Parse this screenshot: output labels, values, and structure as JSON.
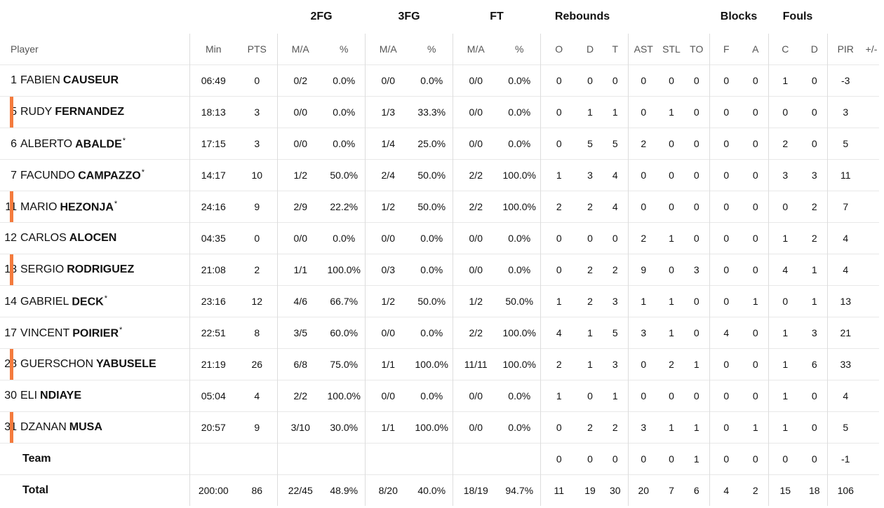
{
  "groups": {
    "fg2": "2FG",
    "fg3": "3FG",
    "ft": "FT",
    "rebounds": "Rebounds",
    "blocks": "Blocks",
    "fouls": "Fouls"
  },
  "columns": [
    "Player",
    "Min",
    "PTS",
    "M/A",
    "%",
    "M/A",
    "%",
    "M/A",
    "%",
    "O",
    "D",
    "T",
    "AST",
    "STL",
    "TO",
    "F",
    "A",
    "C",
    "D",
    "PIR",
    "+/-"
  ],
  "players": [
    {
      "num": "1",
      "first": "FABIEN",
      "last": "CAUSEUR",
      "mark": "",
      "starter": false,
      "stats": [
        "06:49",
        "0",
        "0/2",
        "0.0%",
        "0/0",
        "0.0%",
        "0/0",
        "0.0%",
        "0",
        "0",
        "0",
        "0",
        "0",
        "0",
        "0",
        "0",
        "1",
        "0",
        "-3",
        ""
      ]
    },
    {
      "num": "5",
      "first": "RUDY",
      "last": "FERNANDEZ",
      "mark": "",
      "starter": true,
      "stats": [
        "18:13",
        "3",
        "0/0",
        "0.0%",
        "1/3",
        "33.3%",
        "0/0",
        "0.0%",
        "0",
        "1",
        "1",
        "0",
        "1",
        "0",
        "0",
        "0",
        "0",
        "0",
        "3",
        ""
      ]
    },
    {
      "num": "6",
      "first": "ALBERTO",
      "last": "ABALDE",
      "mark": "*",
      "starter": false,
      "stats": [
        "17:15",
        "3",
        "0/0",
        "0.0%",
        "1/4",
        "25.0%",
        "0/0",
        "0.0%",
        "0",
        "5",
        "5",
        "2",
        "0",
        "0",
        "0",
        "0",
        "2",
        "0",
        "5",
        ""
      ]
    },
    {
      "num": "7",
      "first": "FACUNDO",
      "last": "CAMPAZZO",
      "mark": "*",
      "starter": false,
      "stats": [
        "14:17",
        "10",
        "1/2",
        "50.0%",
        "2/4",
        "50.0%",
        "2/2",
        "100.0%",
        "1",
        "3",
        "4",
        "0",
        "0",
        "0",
        "0",
        "0",
        "3",
        "3",
        "11",
        ""
      ]
    },
    {
      "num": "11",
      "first": "MARIO",
      "last": "HEZONJA",
      "mark": "*",
      "starter": true,
      "stats": [
        "24:16",
        "9",
        "2/9",
        "22.2%",
        "1/2",
        "50.0%",
        "2/2",
        "100.0%",
        "2",
        "2",
        "4",
        "0",
        "0",
        "0",
        "0",
        "0",
        "0",
        "2",
        "7",
        ""
      ]
    },
    {
      "num": "12",
      "first": "CARLOS",
      "last": "ALOCEN",
      "mark": "",
      "starter": false,
      "stats": [
        "04:35",
        "0",
        "0/0",
        "0.0%",
        "0/0",
        "0.0%",
        "0/0",
        "0.0%",
        "0",
        "0",
        "0",
        "2",
        "1",
        "0",
        "0",
        "0",
        "1",
        "2",
        "4",
        ""
      ]
    },
    {
      "num": "13",
      "first": "SERGIO",
      "last": "RODRIGUEZ",
      "mark": "",
      "starter": true,
      "stats": [
        "21:08",
        "2",
        "1/1",
        "100.0%",
        "0/3",
        "0.0%",
        "0/0",
        "0.0%",
        "0",
        "2",
        "2",
        "9",
        "0",
        "3",
        "0",
        "0",
        "4",
        "1",
        "4",
        ""
      ]
    },
    {
      "num": "14",
      "first": "GABRIEL",
      "last": "DECK",
      "mark": "*",
      "starter": false,
      "stats": [
        "23:16",
        "12",
        "4/6",
        "66.7%",
        "1/2",
        "50.0%",
        "1/2",
        "50.0%",
        "1",
        "2",
        "3",
        "1",
        "1",
        "0",
        "0",
        "1",
        "0",
        "1",
        "13",
        ""
      ]
    },
    {
      "num": "17",
      "first": "VINCENT",
      "last": "POIRIER",
      "mark": "*",
      "starter": false,
      "stats": [
        "22:51",
        "8",
        "3/5",
        "60.0%",
        "0/0",
        "0.0%",
        "2/2",
        "100.0%",
        "4",
        "1",
        "5",
        "3",
        "1",
        "0",
        "4",
        "0",
        "1",
        "3",
        "21",
        ""
      ]
    },
    {
      "num": "28",
      "first": "GUERSCHON",
      "last": "YABUSELE",
      "mark": "",
      "starter": true,
      "stats": [
        "21:19",
        "26",
        "6/8",
        "75.0%",
        "1/1",
        "100.0%",
        "11/11",
        "100.0%",
        "2",
        "1",
        "3",
        "0",
        "2",
        "1",
        "0",
        "0",
        "1",
        "6",
        "33",
        ""
      ]
    },
    {
      "num": "30",
      "first": "ELI",
      "last": "NDIAYE",
      "mark": "",
      "starter": false,
      "stats": [
        "05:04",
        "4",
        "2/2",
        "100.0%",
        "0/0",
        "0.0%",
        "0/0",
        "0.0%",
        "1",
        "0",
        "1",
        "0",
        "0",
        "0",
        "0",
        "0",
        "1",
        "0",
        "4",
        ""
      ]
    },
    {
      "num": "31",
      "first": "DZANAN",
      "last": "MUSA",
      "mark": "",
      "starter": true,
      "stats": [
        "20:57",
        "9",
        "3/10",
        "30.0%",
        "1/1",
        "100.0%",
        "0/0",
        "0.0%",
        "0",
        "2",
        "2",
        "3",
        "1",
        "1",
        "0",
        "1",
        "1",
        "0",
        "5",
        ""
      ]
    }
  ],
  "team": {
    "label": "Team",
    "stats": [
      "",
      "",
      "",
      "",
      "",
      "",
      "",
      "",
      "0",
      "0",
      "0",
      "0",
      "0",
      "1",
      "0",
      "0",
      "0",
      "0",
      "-1",
      ""
    ]
  },
  "total": {
    "label": "Total",
    "stats": [
      "200:00",
      "86",
      "22/45",
      "48.9%",
      "8/20",
      "40.0%",
      "18/19",
      "94.7%",
      "11",
      "19",
      "30",
      "20",
      "7",
      "6",
      "4",
      "2",
      "15",
      "18",
      "106",
      ""
    ]
  },
  "colors": {
    "starter_marker": "#f47b3d",
    "grid": "#e8e8e8",
    "separator": "#dddddd"
  }
}
